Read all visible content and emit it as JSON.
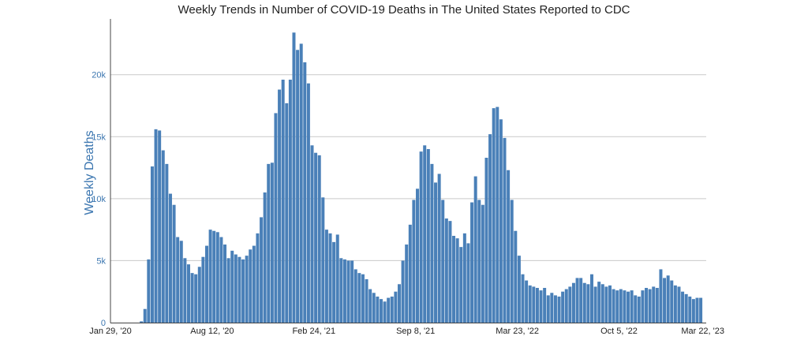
{
  "chart_data": {
    "type": "bar",
    "title": "Weekly Trends in Number of COVID-19 Deaths in The United States Reported to CDC",
    "ylabel": "Weekly Deaths",
    "xlabel": "",
    "ylim": [
      0,
      24500
    ],
    "yticks": [
      0,
      5000,
      10000,
      15000,
      20000
    ],
    "ytick_labels": [
      "0",
      "5k",
      "10k",
      "15k",
      "20k"
    ],
    "x_start": "2020-01-29",
    "x_end": "2023-03-22",
    "xtick_labels": [
      "Jan 29, '20",
      "Aug 12, '20",
      "Feb 24, '21",
      "Sep 8, '21",
      "Mar 23, '22",
      "Oct 5, '22",
      "Mar 22, '23"
    ],
    "xtick_dates": [
      "2020-01-29",
      "2020-08-12",
      "2021-02-24",
      "2021-09-08",
      "2022-03-23",
      "2022-10-05",
      "2023-03-22"
    ],
    "grid": true,
    "bar_color": "#4a80b8",
    "axis_color": "#3b76b0",
    "values": [
      0,
      0,
      0,
      0,
      0,
      0,
      0,
      0,
      100,
      1100,
      5100,
      12600,
      15600,
      15500,
      13900,
      12800,
      10400,
      9500,
      6900,
      6600,
      5200,
      4700,
      4000,
      3900,
      4500,
      5300,
      6200,
      7500,
      7400,
      7300,
      6900,
      6300,
      5200,
      5800,
      5500,
      5300,
      5100,
      5400,
      5900,
      6200,
      7200,
      8500,
      10500,
      12800,
      12900,
      16900,
      18800,
      19600,
      17700,
      19600,
      23400,
      22000,
      22500,
      21000,
      19300,
      14300,
      13700,
      13500,
      10100,
      7500,
      7200,
      6500,
      7100,
      5200,
      5100,
      5000,
      5000,
      4300,
      4000,
      3900,
      3500,
      2700,
      2400,
      2100,
      1900,
      1700,
      2000,
      2100,
      2500,
      3100,
      5000,
      6300,
      7900,
      9900,
      10800,
      13800,
      14300,
      14000,
      12800,
      11300,
      12000,
      9900,
      8400,
      8200,
      7000,
      6800,
      6100,
      7200,
      6400,
      9700,
      11800,
      9900,
      9500,
      13300,
      15200,
      17300,
      17400,
      16400,
      14900,
      12300,
      9900,
      7400,
      5400,
      3900,
      3400,
      3000,
      2900,
      2800,
      2600,
      2800,
      2200,
      2400,
      2200,
      2100,
      2500,
      2700,
      2900,
      3200,
      3600,
      3600,
      3200,
      3100,
      3900,
      2900,
      3300,
      3100,
      2900,
      3000,
      2700,
      2600,
      2700,
      2600,
      2500,
      2600,
      2200,
      2100,
      2600,
      2800,
      2700,
      2900,
      2800,
      4300,
      3600,
      3800,
      3400,
      3000,
      2900,
      2500,
      2300,
      2100,
      1900,
      2000,
      2000
    ]
  }
}
